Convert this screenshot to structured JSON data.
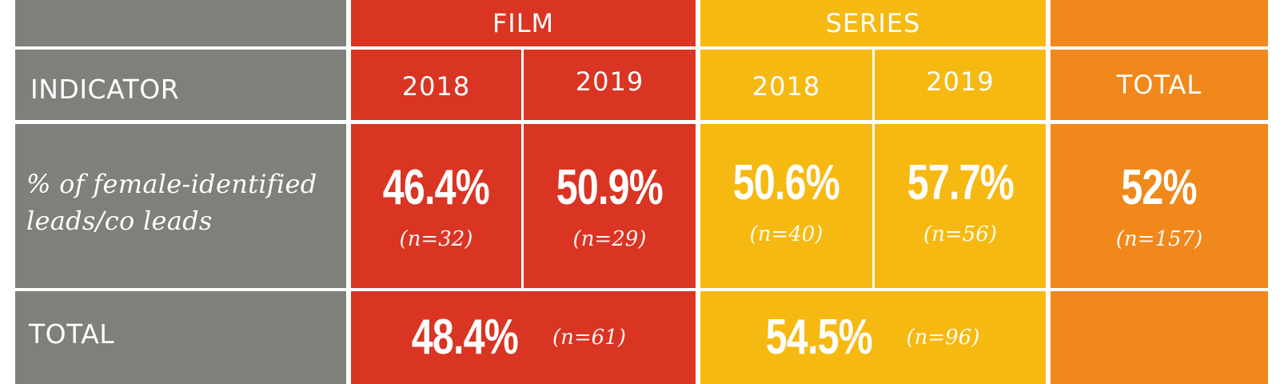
{
  "table": {
    "headers": {
      "film": "FILM",
      "series": "SERIES",
      "indicator": "INDICATOR",
      "film_2018": "2018",
      "film_2019": "2019",
      "series_2018": "2018",
      "series_2019": "2019",
      "total": "TOTAL"
    },
    "row_indicator": {
      "label_line1": "% of female-identified",
      "label_line2": "leads/co leads",
      "film_2018": {
        "value": "46.4%",
        "n": "(n=32)"
      },
      "film_2019": {
        "value": "50.9%",
        "n": "(n=29)"
      },
      "series_2018": {
        "value": "50.6%",
        "n": "(n=40)"
      },
      "series_2019": {
        "value": "57.7%",
        "n": "(n=56)"
      },
      "total": {
        "value": "52%",
        "n": "(n=157)"
      }
    },
    "row_total": {
      "label": "TOTAL",
      "film": {
        "value": "48.4%",
        "n": "(n=61)"
      },
      "series": {
        "value": "54.5%",
        "n": "(n=96)"
      }
    },
    "colors": {
      "grey": "#7f7f7b",
      "film_red": "#da3423",
      "series_yellow": "#f6b911",
      "total_orange": "#f0881c"
    }
  }
}
